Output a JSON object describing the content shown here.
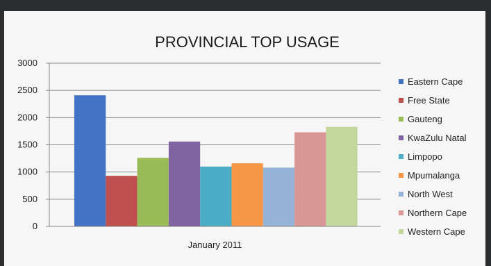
{
  "chart_data": {
    "type": "bar",
    "title": "PROVINCIAL TOP USAGE",
    "categories": [
      "January 2011"
    ],
    "ylim": [
      0,
      3000
    ],
    "yticks": [
      0,
      500,
      1000,
      1500,
      2000,
      2500,
      3000
    ],
    "grid": true,
    "legend_position": "right",
    "series": [
      {
        "name": "Eastern Cape",
        "values": [
          2410
        ],
        "color": "#4472c4"
      },
      {
        "name": "Free State",
        "values": [
          930
        ],
        "color": "#c0504d"
      },
      {
        "name": "Gauteng",
        "values": [
          1260
        ],
        "color": "#9bbb59"
      },
      {
        "name": "KwaZulu Natal",
        "values": [
          1560
        ],
        "color": "#8064a2"
      },
      {
        "name": "Limpopo",
        "values": [
          1100
        ],
        "color": "#4bacc6"
      },
      {
        "name": "Mpumalanga",
        "values": [
          1160
        ],
        "color": "#f79646"
      },
      {
        "name": "North West",
        "values": [
          1080
        ],
        "color": "#95b3d7"
      },
      {
        "name": "Northern Cape",
        "values": [
          1730
        ],
        "color": "#d99694"
      },
      {
        "name": "Western Cape",
        "values": [
          1830
        ],
        "color": "#c3d69b"
      }
    ]
  }
}
